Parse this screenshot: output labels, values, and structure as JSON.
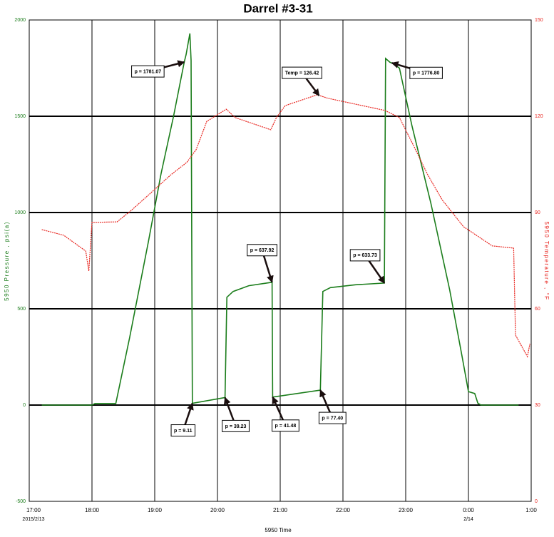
{
  "chart_data": {
    "type": "line",
    "title": "Darrel #3-31",
    "x_label": "5950 Time",
    "y_label": "5950 Pressure , psi(a)",
    "y2_label": "5950 Temperature , °F",
    "xlim": [
      17,
      25
    ],
    "xticks": [
      {
        "value": 17,
        "label": "17:00"
      },
      {
        "value": 18,
        "label": "18:00"
      },
      {
        "value": 19,
        "label": "19:00"
      },
      {
        "value": 20,
        "label": "20:00"
      },
      {
        "value": 21,
        "label": "21:00"
      },
      {
        "value": 22,
        "label": "22:00"
      },
      {
        "value": 23,
        "label": "23:00"
      },
      {
        "value": 24,
        "label": "0:00"
      },
      {
        "value": 25,
        "label": "1:00"
      }
    ],
    "x_date_labels": [
      {
        "value": 17,
        "label": "2015/2/13"
      },
      {
        "value": 24,
        "label": "2/14"
      }
    ],
    "ylim": [
      -500,
      2000
    ],
    "yticks": [
      -500,
      0,
      500,
      1000,
      1500,
      2000
    ],
    "y2lim": [
      0,
      150
    ],
    "y2ticks": [
      0,
      30,
      60,
      90,
      120,
      150
    ],
    "grid": true,
    "series": [
      {
        "name": "5950 Pressure",
        "color": "#1b7d1b",
        "x": [
          17.2,
          18.0,
          18.05,
          18.38,
          18.6,
          18.9,
          19.1,
          19.3,
          19.47,
          19.5,
          19.56,
          19.58,
          19.6,
          20.12,
          20.15,
          20.25,
          20.5,
          20.87,
          20.88,
          21.64,
          21.68,
          21.8,
          22.2,
          22.66,
          22.68,
          22.75,
          22.78,
          22.9,
          23.1,
          23.4,
          23.7,
          23.9,
          24.0,
          24.1,
          24.15,
          24.2,
          24.8
        ],
        "values": [
          0,
          0,
          8,
          8,
          350,
          850,
          1200,
          1500,
          1781.07,
          1820,
          1930,
          1790,
          9.11,
          39.23,
          560,
          590,
          620,
          637.92,
          41.48,
          77.4,
          590,
          610,
          625,
          633.73,
          1800,
          1780,
          1776.8,
          1750,
          1450,
          1050,
          600,
          250,
          70,
          60,
          10,
          0,
          0
        ]
      },
      {
        "name": "5950 Temperature",
        "color": "#e8241e",
        "axis": "y2",
        "x": [
          17.2,
          17.55,
          17.9,
          17.95,
          18.0,
          18.4,
          18.63,
          18.92,
          19.26,
          19.51,
          19.66,
          19.83,
          20.14,
          20.28,
          20.85,
          20.94,
          21.08,
          21.59,
          21.76,
          22.67,
          22.9,
          23.13,
          23.35,
          23.58,
          23.92,
          24.38,
          24.72,
          24.75,
          24.94,
          24.98
        ],
        "values": [
          84.7,
          82.9,
          78,
          71.8,
          86.9,
          87.1,
          90.7,
          95.8,
          101.8,
          105.6,
          109.6,
          118.4,
          122.2,
          119.6,
          115.8,
          119.6,
          123.3,
          126.7,
          125.6,
          121.8,
          119.6,
          110.7,
          101.8,
          94,
          85.6,
          79.6,
          78.9,
          51.8,
          45.1,
          49.1
        ]
      }
    ],
    "annotations": [
      {
        "text": "p = 1781.07",
        "x": 19.47,
        "y": 1781.07
      },
      {
        "text": "p = 9.11",
        "x": 19.6,
        "y": 9.11
      },
      {
        "text": "p = 39.23",
        "x": 20.12,
        "y": 39.23
      },
      {
        "text": "p = 637.92",
        "x": 20.87,
        "y": 637.92
      },
      {
        "text": "p = 41.48",
        "x": 20.88,
        "y": 41.48
      },
      {
        "text": "p = 77.40",
        "x": 21.64,
        "y": 77.4
      },
      {
        "text": "Temp = 126.42",
        "x": 21.62,
        "y": 126.42,
        "axis": "y2"
      },
      {
        "text": "p = 633.73",
        "x": 22.66,
        "y": 633.73
      },
      {
        "text": "p = 1776.80",
        "x": 22.78,
        "y": 1776.8
      }
    ]
  }
}
